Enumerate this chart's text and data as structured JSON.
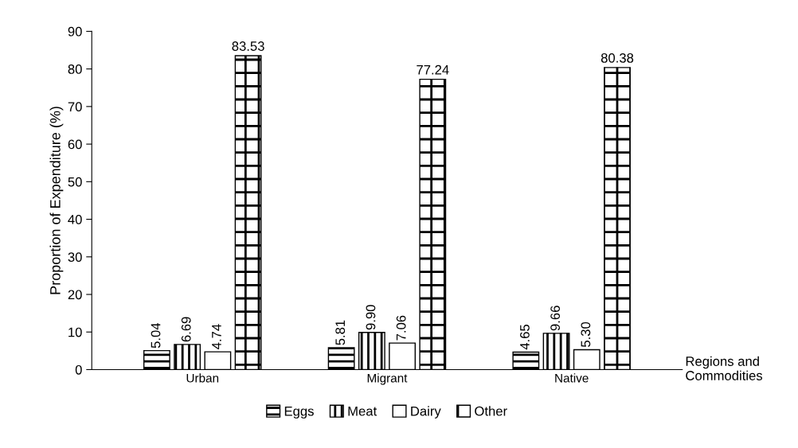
{
  "chart_data": {
    "type": "bar",
    "xlabel": "Regions and Commodities",
    "ylabel": "Proportion of Expenditure (%)",
    "categories": [
      "Urban",
      "Migrant",
      "Native"
    ],
    "series": [
      {
        "name": "Eggs",
        "color": "#000000",
        "values": [
          5.04,
          5.81,
          4.65
        ],
        "value_labels": [
          "5.04",
          "5.81",
          "4.65"
        ]
      },
      {
        "name": "Meat",
        "color": "#000000",
        "values": [
          6.69,
          9.9,
          9.66
        ],
        "value_labels": [
          "6.69",
          "9.90",
          "9.66"
        ]
      },
      {
        "name": "Dairy",
        "color": "#ffffff",
        "values": [
          4.74,
          7.06,
          5.3
        ],
        "value_labels": [
          "4.74",
          "7.06",
          "5.30"
        ]
      },
      {
        "name": "Other",
        "color": "#000000",
        "values": [
          83.53,
          77.24,
          80.38
        ],
        "value_labels": [
          "83.53",
          "77.24",
          "80.38"
        ]
      }
    ],
    "ylim": [
      0,
      90
    ],
    "yticks": [
      0,
      10,
      20,
      30,
      40,
      50,
      60,
      70,
      80,
      90
    ],
    "grid": false,
    "legend": "bottom"
  }
}
